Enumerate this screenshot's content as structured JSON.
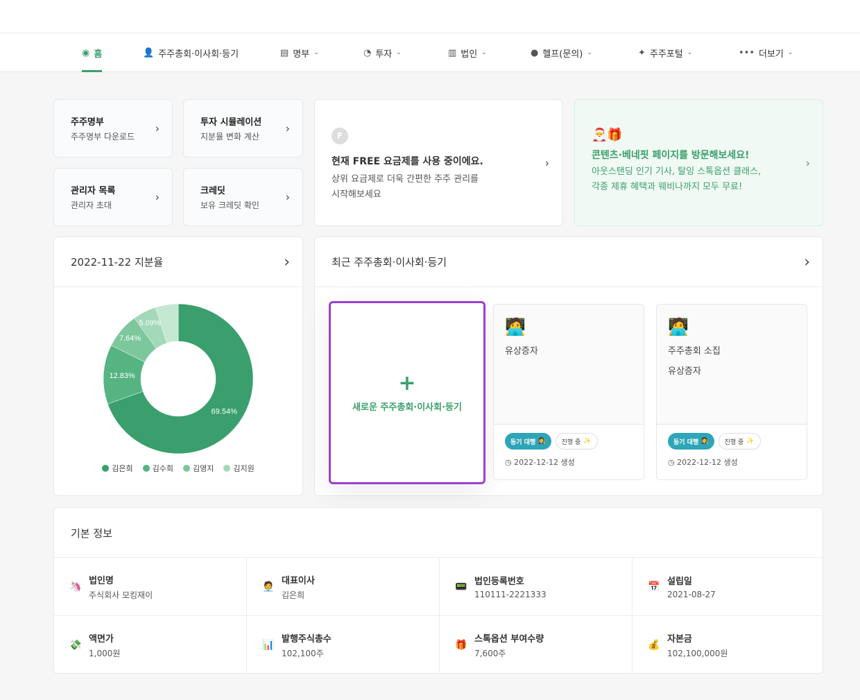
{
  "nav": [
    {
      "label": "홈",
      "icon": "compass-icon",
      "glyph": "◉",
      "active": true,
      "dropdown": false
    },
    {
      "label": "주주총회·이사회·등기",
      "icon": "person-icon",
      "glyph": "👤",
      "dropdown": false
    },
    {
      "label": "명부",
      "icon": "document-icon",
      "glyph": "▤",
      "dropdown": true
    },
    {
      "label": "투자",
      "icon": "pie-chart-icon",
      "glyph": "◔",
      "dropdown": true
    },
    {
      "label": "법인",
      "icon": "building-icon",
      "glyph": "▥",
      "dropdown": true
    },
    {
      "label": "헬프(문의)",
      "icon": "chat-icon",
      "glyph": "●",
      "dropdown": true
    },
    {
      "label": "주주포털",
      "icon": "sparkle-icon",
      "glyph": "✦",
      "dropdown": true
    },
    {
      "label": "더보기",
      "icon": "more-icon",
      "glyph": "•••",
      "dropdown": true
    }
  ],
  "quick": [
    {
      "title": "주주명부",
      "sub": "주주명부 다운로드"
    },
    {
      "title": "투자 시뮬레이션",
      "sub": "지분율 변화 계산"
    },
    {
      "title": "관리자 목록",
      "sub": "관리자 초대"
    },
    {
      "title": "크레딧",
      "sub": "보유 크레딧 확인"
    }
  ],
  "plan": {
    "badge": "F",
    "title": "현재 FREE 요금제를 사용 중이에요.",
    "line1": "상위 요금제로 더욱 간편한 주주 관리를",
    "line2": "시작해보세요"
  },
  "promo": {
    "emoji": "🎅🎁",
    "title": "콘텐츠·베네핏 페이지를 방문해보세요!",
    "line1": "아웃스탠딩 인기 기사, 탈잉 스톡옵션 클래스,",
    "line2": "각종 제휴 혜택과 웨비나까지 모두 무료!"
  },
  "share": {
    "title": "2022-11-22 지분율",
    "chart_data": {
      "type": "pie",
      "donut": true,
      "values": [
        69.54,
        12.83,
        7.64,
        5.09,
        4.9
      ],
      "labels": [
        "69.54%",
        "12.83%",
        "7.64%",
        "5.09%",
        ""
      ],
      "legend": [
        "김은희",
        "김수희",
        "김영지",
        "김지원"
      ],
      "legend_placement": "bottom",
      "colors": [
        "#3a9f6c",
        "#55b482",
        "#7dc79c",
        "#a3d8b8",
        "#c5e8d3"
      ]
    }
  },
  "recent": {
    "title": "최근 주주총회·이사회·등기",
    "new_label": "새로운 주주총회·이사회·등기",
    "items": [
      {
        "emoji": "🧑‍💻",
        "lines": [
          "유상증자"
        ],
        "badge": "등기 대행",
        "status": "진행 중",
        "date": "2022-12-12 생성"
      },
      {
        "emoji": "🧑‍💻",
        "lines": [
          "주주총회 소집",
          "유상증자"
        ],
        "badge": "등기 대행",
        "status": "진행 중",
        "date": "2022-12-12 생성"
      }
    ]
  },
  "info": {
    "title": "기본 정보",
    "cells": [
      {
        "emoji": "🦄",
        "icon": "unicorn-icon",
        "key": "법인명",
        "value": "주식회사 모킹재이"
      },
      {
        "emoji": "🧑‍💼",
        "icon": "person-icon",
        "key": "대표이사",
        "value": "김은희"
      },
      {
        "emoji": "📟",
        "icon": "pager-icon",
        "key": "법인등록번호",
        "value": "110111-2221333"
      },
      {
        "emoji": "📅",
        "icon": "calendar-icon",
        "key": "설립일",
        "value": "2021-08-27"
      },
      {
        "emoji": "💸",
        "icon": "money-icon",
        "key": "액면가",
        "value": "1,000원"
      },
      {
        "emoji": "📊",
        "icon": "bar-chart-icon",
        "key": "발행주식총수",
        "value": "102,100주"
      },
      {
        "emoji": "🎁",
        "icon": "gift-icon",
        "key": "스톡옵션 부여수량",
        "value": "7,600주"
      },
      {
        "emoji": "💰",
        "icon": "money-bag-icon",
        "key": "자본금",
        "value": "102,100,000원"
      }
    ]
  }
}
